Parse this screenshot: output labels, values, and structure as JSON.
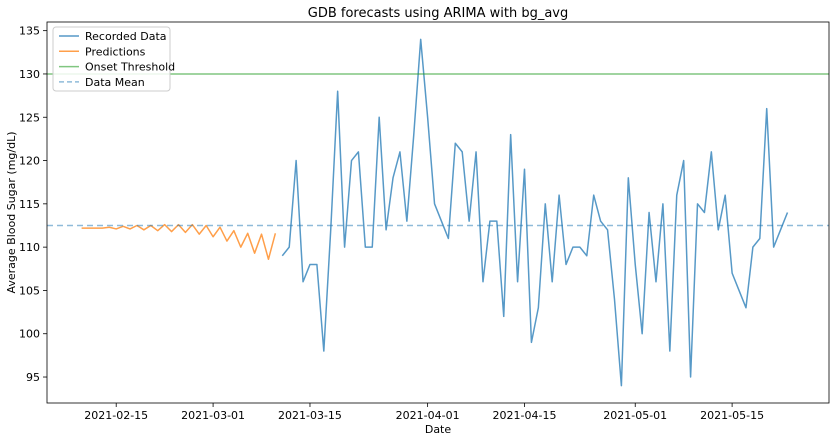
{
  "chart_data": {
    "type": "line",
    "title": "GDB forecasts using ARIMA with bg_avg",
    "xlabel": "Date",
    "ylabel": "Average Blood Sugar (mg/dL)",
    "xlim": [
      "2021-02-05",
      "2021-05-29"
    ],
    "ylim": [
      92,
      136
    ],
    "x_ticks": [
      "2021-02-15",
      "2021-03-01",
      "2021-03-15",
      "2021-04-01",
      "2021-04-15",
      "2021-05-01",
      "2021-05-15"
    ],
    "y_ticks": [
      95,
      100,
      105,
      110,
      115,
      120,
      125,
      130,
      135
    ],
    "grid": false,
    "legend_position": "top-left",
    "series": [
      {
        "name": "Recorded Data",
        "style": "solid",
        "color": "#1f77b4",
        "x": [
          "2021-03-11",
          "2021-03-12",
          "2021-03-13",
          "2021-03-14",
          "2021-03-15",
          "2021-03-16",
          "2021-03-17",
          "2021-03-18",
          "2021-03-19",
          "2021-03-20",
          "2021-03-21",
          "2021-03-22",
          "2021-03-23",
          "2021-03-24",
          "2021-03-25",
          "2021-03-26",
          "2021-03-27",
          "2021-03-28",
          "2021-03-29",
          "2021-03-30",
          "2021-03-31",
          "2021-04-01",
          "2021-04-02",
          "2021-04-03",
          "2021-04-04",
          "2021-04-05",
          "2021-04-06",
          "2021-04-07",
          "2021-04-08",
          "2021-04-09",
          "2021-04-10",
          "2021-04-11",
          "2021-04-12",
          "2021-04-13",
          "2021-04-14",
          "2021-04-15",
          "2021-04-16",
          "2021-04-17",
          "2021-04-18",
          "2021-04-19",
          "2021-04-20",
          "2021-04-21",
          "2021-04-22",
          "2021-04-23",
          "2021-04-24",
          "2021-04-25",
          "2021-04-26",
          "2021-04-27",
          "2021-04-28",
          "2021-04-29",
          "2021-04-30",
          "2021-05-01",
          "2021-05-02",
          "2021-05-03",
          "2021-05-04",
          "2021-05-05",
          "2021-05-06",
          "2021-05-07",
          "2021-05-08",
          "2021-05-09",
          "2021-05-10",
          "2021-05-11",
          "2021-05-12",
          "2021-05-13",
          "2021-05-14",
          "2021-05-15",
          "2021-05-16",
          "2021-05-17",
          "2021-05-18",
          "2021-05-19",
          "2021-05-20",
          "2021-05-21",
          "2021-05-22",
          "2021-05-23"
        ],
        "y": [
          109,
          110,
          120,
          106,
          108,
          108,
          98,
          112,
          128,
          110,
          120,
          121,
          110,
          110,
          125,
          112,
          118,
          121,
          113,
          123,
          134,
          125,
          115,
          113,
          111,
          122,
          121,
          113,
          121,
          106,
          113,
          113,
          102,
          123,
          106,
          119,
          99,
          103,
          115,
          106,
          116,
          108,
          110,
          110,
          109,
          116,
          113,
          112,
          104,
          94,
          118,
          108,
          100,
          114,
          106,
          115,
          98,
          116,
          120,
          95,
          115,
          114,
          121,
          112,
          116,
          107,
          105,
          103,
          110,
          111,
          126,
          110,
          112,
          114
        ]
      },
      {
        "name": "Predictions",
        "style": "solid",
        "color": "#ff7f0e",
        "x": [
          "2021-02-10",
          "2021-02-11",
          "2021-02-12",
          "2021-02-13",
          "2021-02-14",
          "2021-02-15",
          "2021-02-16",
          "2021-02-17",
          "2021-02-18",
          "2021-02-19",
          "2021-02-20",
          "2021-02-21",
          "2021-02-22",
          "2021-02-23",
          "2021-02-24",
          "2021-02-25",
          "2021-02-26",
          "2021-02-27",
          "2021-02-28",
          "2021-03-01",
          "2021-03-02",
          "2021-03-03",
          "2021-03-04",
          "2021-03-05",
          "2021-03-06",
          "2021-03-07",
          "2021-03-08",
          "2021-03-09",
          "2021-03-10"
        ],
        "y": [
          112.2,
          112.2,
          112.2,
          112.2,
          112.3,
          112.1,
          112.4,
          112.1,
          112.5,
          112.0,
          112.5,
          111.9,
          112.6,
          111.8,
          112.6,
          111.7,
          112.6,
          111.5,
          112.5,
          111.2,
          112.3,
          110.7,
          111.9,
          110.0,
          111.6,
          109.3,
          111.5,
          108.6,
          111.6
        ]
      },
      {
        "name": "Onset Threshold",
        "style": "solid",
        "color": "#2ca02c",
        "x": [
          "2021-02-05",
          "2021-05-29"
        ],
        "y": [
          130,
          130
        ]
      },
      {
        "name": "Data Mean",
        "style": "dashed",
        "color": "#1f77b4",
        "x": [
          "2021-02-05",
          "2021-05-29"
        ],
        "y": [
          112.5,
          112.5
        ]
      }
    ]
  }
}
